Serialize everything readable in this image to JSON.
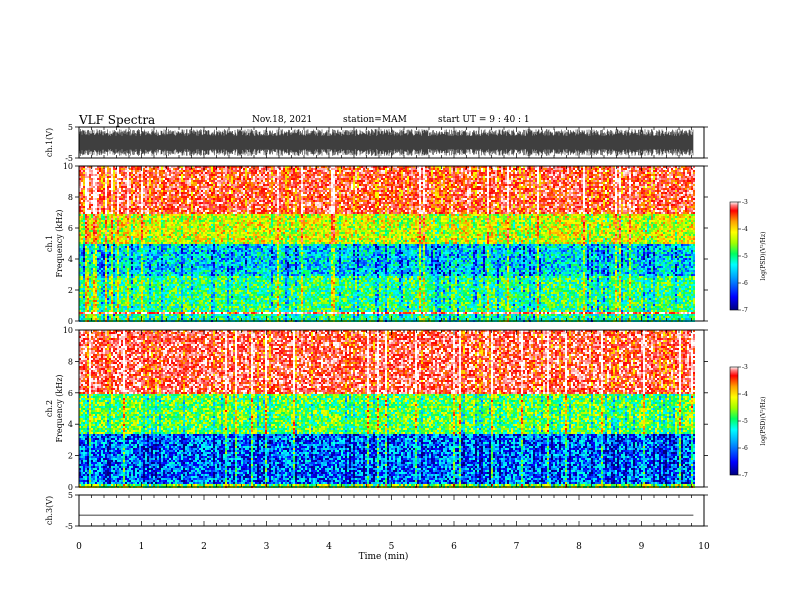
{
  "header": {
    "title": "VLF Spectra",
    "date": "Nov.18, 2021",
    "station": "station=MAM",
    "start": "start  UT =   9 : 40 : 1"
  },
  "chart_data": [
    {
      "type": "line",
      "panel": "ch1-waveform",
      "ylabel": "ch.1(V)",
      "yticks": [
        "5",
        "-5"
      ],
      "ylim": [
        -5,
        5
      ],
      "xlim": [
        0,
        10
      ],
      "description_values": "dense waveform filling most of the -5..5 V range"
    },
    {
      "type": "heatmap",
      "panel": "ch1-spectrogram",
      "ylabel": "ch.1\nFrequency (kHz)",
      "ylabel_line1": "ch.1",
      "ylabel_line2": "Frequency (kHz)",
      "yticks": [
        "0",
        "2",
        "4",
        "6",
        "8",
        "10"
      ],
      "ylim": [
        0,
        10
      ],
      "xlim": [
        0,
        9.83
      ],
      "colorbar": {
        "label": "log(PSD)(V²/Hz)",
        "ticks": [
          "-3",
          "-4",
          "-5",
          "-6",
          "-7"
        ],
        "range": [
          -7,
          -3
        ]
      },
      "bands_logpsd": [
        {
          "f": [
            0,
            0.5
          ],
          "v": -5.5
        },
        {
          "f": [
            0.5,
            0.7
          ],
          "v": -3.3
        },
        {
          "f": [
            0.7,
            3.0
          ],
          "v": -5.4
        },
        {
          "f": [
            3.0,
            5.0
          ],
          "v": -5.9
        },
        {
          "f": [
            5.0,
            7.0
          ],
          "v": -4.7
        },
        {
          "f": [
            7.0,
            10.0
          ],
          "v": -3.6
        }
      ]
    },
    {
      "type": "heatmap",
      "panel": "ch2-spectrogram",
      "ylabel_line1": "ch.2",
      "ylabel_line2": "Frequency (kHz)",
      "yticks": [
        "0",
        "2",
        "4",
        "6",
        "8",
        "10"
      ],
      "ylim": [
        0,
        10
      ],
      "xlim": [
        0,
        9.83
      ],
      "colorbar": {
        "label": "log(PSD)(V²/Hz)",
        "ticks": [
          "-3",
          "-4",
          "-5",
          "-6",
          "-7"
        ],
        "range": [
          -7,
          -3
        ]
      },
      "bands_logpsd": [
        {
          "f": [
            0,
            0.3
          ],
          "v": -5.0
        },
        {
          "f": [
            0.3,
            3.5
          ],
          "v": -6.3
        },
        {
          "f": [
            3.5,
            6.0
          ],
          "v": -5.2
        },
        {
          "f": [
            6.0,
            10.0
          ],
          "v": -3.5
        }
      ]
    },
    {
      "type": "line",
      "panel": "ch3-waveform",
      "ylabel": "ch.3(V)",
      "yticks": [
        "5",
        "-5"
      ],
      "ylim": [
        -5,
        5
      ],
      "xlim": [
        0,
        10
      ],
      "x": [
        0,
        9.83
      ],
      "y": [
        -1.5,
        -1.5
      ]
    }
  ],
  "x_axis": {
    "label": "Time (min)",
    "ticks": [
      "0",
      "1",
      "2",
      "3",
      "4",
      "5",
      "6",
      "7",
      "8",
      "9",
      "10"
    ],
    "range": [
      0,
      10
    ]
  },
  "colors": {
    "scale": [
      "#00007f",
      "#0000ff",
      "#00a0ff",
      "#00ffff",
      "#00ff60",
      "#a0ff00",
      "#ffff00",
      "#ffa000",
      "#ff0000",
      "#ff8080",
      "#ffffff"
    ]
  }
}
